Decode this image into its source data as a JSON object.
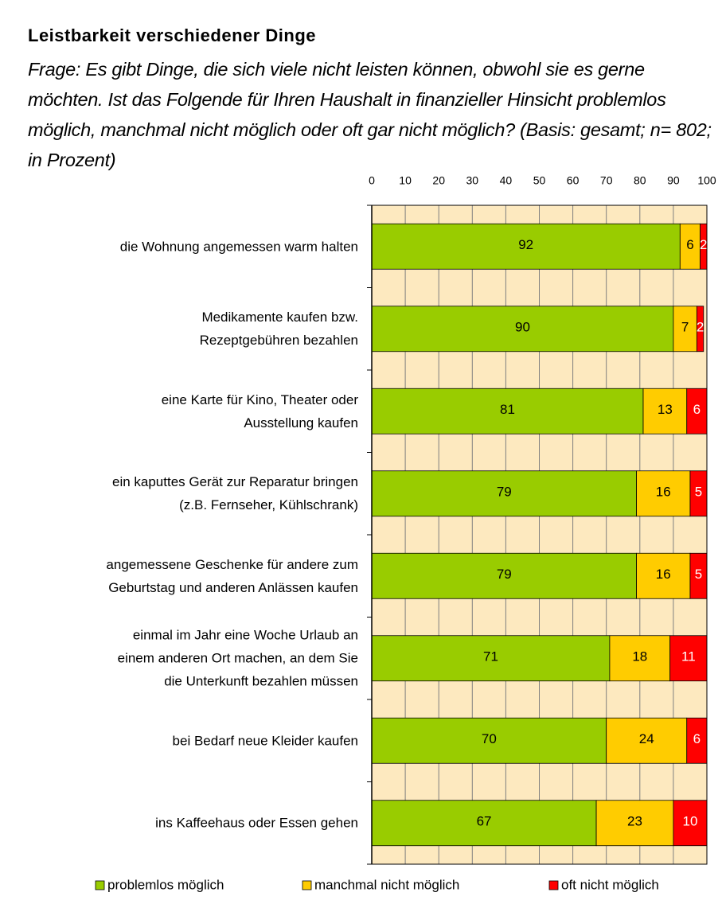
{
  "chart_data": {
    "type": "stacked_barh",
    "title": "Leistbarkeit verschiedener Dinge",
    "subtitle": "Frage: Es gibt Dinge, die sich viele nicht leisten können, obwohl sie es gerne möchten. Ist das Folgende für Ihren Haushalt in finanzieller Hinsicht problemlos möglich, manchmal nicht möglich oder oft gar nicht möglich? (Basis: gesamt; n= 802; in Prozent)",
    "categories": [
      "die Wohnung angemessen warm halten",
      "Medikamente kaufen bzw.\nRezeptgebühren bezahlen",
      "eine Karte für Kino, Theater oder\nAusstellung kaufen",
      "ein kaputtes Gerät zur Reparatur bringen\n(z.B. Fernseher, Kühlschrank)",
      "angemessene Geschenke für andere zum\nGeburtstag und anderen Anlässen kaufen",
      "einmal im Jahr eine Woche Urlaub an\neinem anderen Ort machen, an dem Sie\ndie Unterkunft bezahlen müssen",
      "bei Bedarf neue Kleider kaufen",
      "ins Kaffeehaus oder Essen gehen"
    ],
    "series": [
      {
        "name": "problemlos möglich",
        "color": "#99cc00",
        "label_color": "#000000",
        "values": [
          92,
          90,
          81,
          79,
          79,
          71,
          70,
          67
        ]
      },
      {
        "name": "manchmal nicht möglich",
        "color": "#ffcc00",
        "label_color": "#000000",
        "values": [
          6,
          7,
          13,
          16,
          16,
          18,
          24,
          23
        ]
      },
      {
        "name": "oft nicht möglich",
        "color": "#ff0000",
        "label_color": "#ffffff",
        "values": [
          2,
          2,
          6,
          5,
          5,
          11,
          6,
          10
        ]
      }
    ],
    "xlim": [
      0,
      100
    ],
    "xticks": [
      0,
      10,
      20,
      30,
      40,
      50,
      60,
      70,
      80,
      90,
      100
    ],
    "grid": true,
    "plot_background": "#fde9bf"
  }
}
